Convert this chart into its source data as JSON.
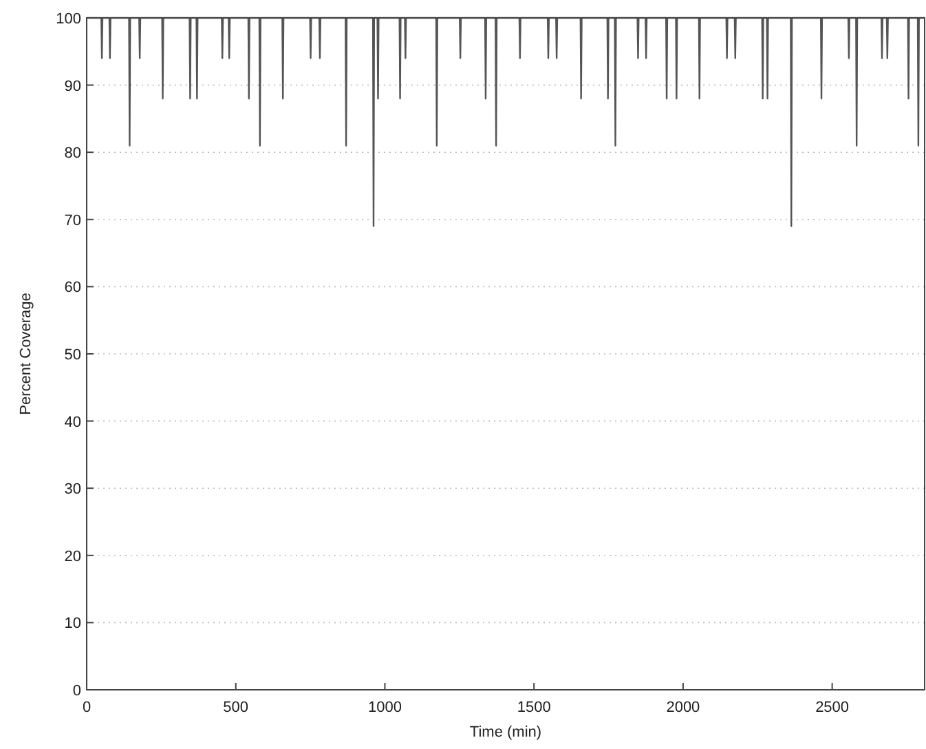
{
  "chart_data": {
    "type": "line",
    "xlabel": "Time (min)",
    "ylabel": "Percent Coverage",
    "xlim": [
      0,
      2810
    ],
    "ylim": [
      0,
      100
    ],
    "xticks": [
      0,
      500,
      1000,
      1500,
      2000,
      2500
    ],
    "yticks": [
      0,
      10,
      20,
      30,
      40,
      50,
      60,
      70,
      80,
      90,
      100
    ],
    "grid": "y",
    "marker": "none",
    "line_style": "solid",
    "series": [
      {
        "color": "#555555",
        "x": [
          0,
          49,
          51,
          53,
          76,
          78,
          80,
          142,
          144,
          146,
          176,
          178,
          180,
          253,
          255,
          257,
          345,
          347,
          349,
          368,
          370,
          372,
          453,
          455,
          457,
          476,
          478,
          480,
          542,
          544,
          546,
          579,
          581,
          583,
          656,
          658,
          660,
          749,
          751,
          753,
          780,
          782,
          784,
          868,
          870,
          872,
          960,
          962,
          964,
          975,
          977,
          979,
          1049,
          1051,
          1053,
          1067,
          1069,
          1071,
          1172,
          1174,
          1176,
          1251,
          1253,
          1255,
          1336,
          1338,
          1340,
          1371,
          1373,
          1375,
          1451,
          1453,
          1455,
          1546,
          1548,
          1550,
          1574,
          1576,
          1578,
          1656,
          1658,
          1660,
          1746,
          1748,
          1750,
          1771,
          1773,
          1775,
          1847,
          1849,
          1851,
          1874,
          1876,
          1878,
          1943,
          1945,
          1947,
          1976,
          1978,
          1980,
          2053,
          2055,
          2057,
          2145,
          2147,
          2149,
          2173,
          2175,
          2177,
          2265,
          2267,
          2269,
          2281,
          2283,
          2285,
          2361,
          2363,
          2365,
          2462,
          2464,
          2466,
          2554,
          2556,
          2558,
          2580,
          2582,
          2584,
          2665,
          2667,
          2669,
          2683,
          2685,
          2687,
          2754,
          2756,
          2758,
          2787,
          2789,
          2791,
          2810
        ],
        "values": [
          100,
          100,
          94,
          100,
          100,
          94,
          100,
          100,
          81,
          100,
          100,
          94,
          100,
          100,
          88,
          100,
          100,
          88,
          100,
          100,
          88,
          100,
          100,
          94,
          100,
          100,
          94,
          100,
          100,
          88,
          100,
          100,
          81,
          100,
          100,
          88,
          100,
          100,
          94,
          100,
          100,
          94,
          100,
          100,
          81,
          100,
          100,
          69,
          100,
          100,
          88,
          100,
          100,
          88,
          100,
          100,
          94,
          100,
          100,
          81,
          100,
          100,
          94,
          100,
          100,
          88,
          100,
          100,
          81,
          100,
          100,
          94,
          100,
          100,
          94,
          100,
          100,
          94,
          100,
          100,
          88,
          100,
          100,
          88,
          100,
          100,
          81,
          100,
          100,
          94,
          100,
          100,
          94,
          100,
          100,
          88,
          100,
          100,
          88,
          100,
          100,
          88,
          100,
          100,
          94,
          100,
          100,
          94,
          100,
          100,
          88,
          100,
          100,
          88,
          100,
          100,
          69,
          100,
          100,
          88,
          100,
          100,
          94,
          100,
          100,
          81,
          100,
          100,
          94,
          100,
          100,
          94,
          100,
          100,
          88,
          100,
          100,
          81,
          100,
          100
        ]
      }
    ]
  }
}
